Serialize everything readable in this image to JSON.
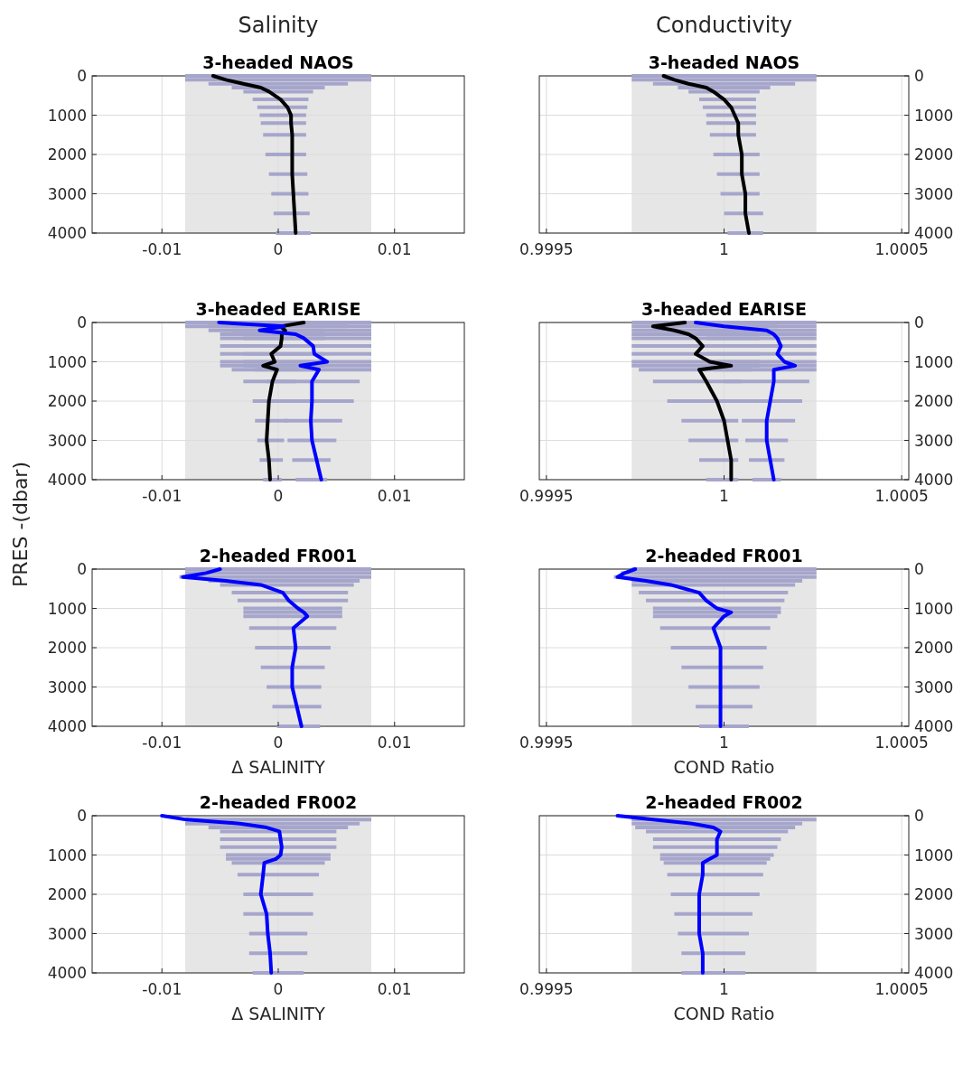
{
  "chart_data": [
    {
      "type": "line",
      "subtitle": "Salinity",
      "title": "3-headed NAOS",
      "xlim": [
        -0.016,
        0.016
      ],
      "xticks": [
        -0.01,
        0,
        0.01
      ],
      "ylim": [
        4000,
        0
      ],
      "yticks": [
        0,
        1000,
        2000,
        3000,
        4000
      ],
      "grid": true,
      "line_style": "solid",
      "bands": [
        {
          "axis": "x",
          "from": -0.008,
          "to": 0.008,
          "color": "#e6e6e6"
        }
      ],
      "series": [
        {
          "color": "#000000",
          "values": [
            0,
            100,
            200,
            300,
            400,
            600,
            800,
            1000,
            1200,
            1500,
            2000,
            2500,
            3000,
            3500,
            4000
          ],
          "x": [
            -0.0056,
            -0.0045,
            -0.003,
            -0.0015,
            -0.0008,
            0.0002,
            0.0008,
            0.0011,
            0.0011,
            0.0012,
            0.0012,
            0.0012,
            0.0013,
            0.0014,
            0.0015
          ],
          "xerrors": [
            [
              -0.008,
              0.008
            ],
            [
              -0.008,
              0.008
            ],
            [
              -0.006,
              0.006
            ],
            [
              -0.004,
              0.004
            ],
            [
              -0.003,
              0.003
            ],
            [
              -0.0022,
              0.0026
            ],
            [
              -0.0018,
              0.0025
            ],
            [
              -0.0016,
              0.0024
            ],
            [
              -0.0015,
              0.0024
            ],
            [
              -0.0013,
              0.0024
            ],
            [
              -0.0011,
              0.0024
            ],
            [
              -0.0008,
              0.0025
            ],
            [
              -0.0006,
              0.0026
            ],
            [
              -0.0004,
              0.0027
            ],
            [
              -0.0002,
              0.0028
            ]
          ]
        }
      ]
    },
    {
      "type": "line",
      "subtitle": "Conductivity",
      "title": "3-headed NAOS",
      "xlim": [
        0.99948,
        1.00052
      ],
      "xticks": [
        0.9995,
        1,
        1.0005
      ],
      "ylim": [
        4000,
        0
      ],
      "yticks": [
        0,
        1000,
        2000,
        3000,
        4000
      ],
      "grid": true,
      "line_style": "solid",
      "bands": [
        {
          "axis": "x",
          "from": 0.99974,
          "to": 1.00026,
          "color": "#e6e6e6"
        }
      ],
      "series": [
        {
          "color": "#000000",
          "values": [
            0,
            100,
            200,
            300,
            400,
            600,
            800,
            1000,
            1200,
            1500,
            2000,
            2500,
            3000,
            3500,
            4000
          ],
          "x": [
            0.99983,
            0.99986,
            0.9999,
            0.99995,
            0.99997,
            1.0,
            1.00002,
            1.00003,
            1.00004,
            1.00004,
            1.00005,
            1.00005,
            1.00006,
            1.00006,
            1.00007
          ],
          "xerrors": [
            [
              0.99974,
              1.00026
            ],
            [
              0.99974,
              1.00026
            ],
            [
              0.9998,
              1.0002
            ],
            [
              0.99987,
              1.00013
            ],
            [
              0.9999,
              1.0001
            ],
            [
              0.99993,
              1.00009
            ],
            [
              0.99994,
              1.00009
            ],
            [
              0.99995,
              1.00009
            ],
            [
              0.99995,
              1.00009
            ],
            [
              0.99996,
              1.00009
            ],
            [
              0.99997,
              1.0001
            ],
            [
              0.99998,
              1.0001
            ],
            [
              0.99999,
              1.0001
            ],
            [
              1.0,
              1.00011
            ],
            [
              1.00001,
              1.00011
            ]
          ]
        }
      ]
    },
    {
      "type": "line",
      "title": "3-headed EARISE",
      "ylabel": "PRES -(dbar)",
      "xlim": [
        -0.016,
        0.016
      ],
      "xticks": [
        -0.01,
        0,
        0.01
      ],
      "ylim": [
        4000,
        0
      ],
      "yticks": [
        0,
        1000,
        2000,
        3000,
        4000
      ],
      "grid": true,
      "line_style": "solid",
      "bands": [
        {
          "axis": "x",
          "from": -0.008,
          "to": 0.008,
          "color": "#e6e6e6"
        }
      ],
      "series": [
        {
          "color": "#000000",
          "values": [
            0,
            100,
            200,
            300,
            400,
            600,
            800,
            1000,
            1100,
            1200,
            1500,
            2000,
            2500,
            3000,
            3500,
            4000
          ],
          "x": [
            0.0022,
            0.0002,
            0.0006,
            0.0003,
            0.0003,
            0.0002,
            -0.0006,
            -0.0003,
            -0.0013,
            -0.0001,
            -0.0005,
            -0.0008,
            -0.0009,
            -0.001,
            -0.0008,
            -0.0007
          ],
          "xerrors": [
            [
              -0.008,
              0.008
            ],
            [
              -0.008,
              0.006
            ],
            [
              -0.006,
              0.004
            ],
            [
              -0.005,
              0.004
            ],
            [
              -0.005,
              0.004
            ],
            [
              -0.005,
              0.004
            ],
            [
              -0.005,
              0.004
            ],
            [
              -0.005,
              0.004
            ],
            [
              -0.005,
              0.004
            ],
            [
              -0.004,
              0.003
            ],
            [
              -0.003,
              0.0015
            ],
            [
              -0.0022,
              0.001
            ],
            [
              -0.002,
              0.0008
            ],
            [
              -0.0018,
              0.0005
            ],
            [
              -0.0016,
              0.0004
            ],
            [
              -0.0013,
              0.0003
            ]
          ]
        },
        {
          "color": "#0000ff",
          "values": [
            0,
            100,
            200,
            300,
            400,
            600,
            800,
            1000,
            1100,
            1200,
            1500,
            2000,
            2500,
            3000,
            3500,
            4000
          ],
          "x": [
            -0.0051,
            0.0005,
            -0.0016,
            0.0015,
            0.0022,
            0.003,
            0.0031,
            0.0042,
            0.0019,
            0.0035,
            0.0029,
            0.0029,
            0.0028,
            0.0029,
            0.0033,
            0.0037
          ],
          "xerrors": [
            [
              -0.008,
              0.008
            ],
            [
              -0.006,
              0.008
            ],
            [
              -0.004,
              0.008
            ],
            [
              -0.003,
              0.008
            ],
            [
              -0.003,
              0.008
            ],
            [
              -0.003,
              0.008
            ],
            [
              -0.003,
              0.008
            ],
            [
              -0.003,
              0.008
            ],
            [
              -0.003,
              0.008
            ],
            [
              -0.002,
              0.008
            ],
            [
              -0.001,
              0.007
            ],
            [
              0,
              0.0065
            ],
            [
              0.0005,
              0.0055
            ],
            [
              0.0008,
              0.005
            ],
            [
              0.0012,
              0.0045
            ],
            [
              0.0015,
              0.0042
            ]
          ]
        }
      ]
    },
    {
      "type": "line",
      "title": "3-headed EARISE",
      "xlim": [
        0.99948,
        1.00052
      ],
      "xticks": [
        0.9995,
        1,
        1.0005
      ],
      "ylim": [
        4000,
        0
      ],
      "yticks": [
        0,
        1000,
        2000,
        3000,
        4000
      ],
      "grid": true,
      "line_style": "solid",
      "bands": [
        {
          "axis": "x",
          "from": 0.99974,
          "to": 1.00026,
          "color": "#e6e6e6"
        }
      ],
      "series": [
        {
          "color": "#000000",
          "values": [
            0,
            100,
            200,
            300,
            400,
            600,
            800,
            1000,
            1100,
            1200,
            1500,
            2000,
            2500,
            3000,
            3500,
            4000
          ],
          "x": [
            0.99989,
            0.9998,
            0.99986,
            0.9999,
            0.99992,
            0.99994,
            0.99992,
            0.99996,
            1.00002,
            0.99993,
            0.99995,
            0.99998,
            1.0,
            1.00001,
            1.00002,
            1.00002
          ],
          "xerrors": [
            null,
            [
              0.99974,
              1.00015
            ],
            [
              0.99974,
              1.0001
            ],
            [
              0.99974,
              1.0001
            ],
            [
              0.99974,
              1.0001
            ],
            [
              0.99974,
              1.0001
            ],
            [
              0.99974,
              1.0001
            ],
            [
              0.99974,
              1.0001
            ],
            [
              0.99974,
              1.0001
            ],
            [
              0.99976,
              1.00008
            ],
            [
              0.9998,
              1.00005
            ],
            [
              0.99984,
              1.00005
            ],
            [
              0.99988,
              1.00004
            ],
            [
              0.9999,
              1.00004
            ],
            [
              0.99993,
              1.00004
            ],
            [
              0.99995,
              1.00004
            ]
          ]
        },
        {
          "color": "#0000ff",
          "values": [
            0,
            100,
            200,
            300,
            400,
            600,
            800,
            1000,
            1100,
            1200,
            1500,
            2000,
            2500,
            3000,
            3500,
            4000
          ],
          "x": [
            0.99992,
            1.0,
            1.00012,
            1.00014,
            1.00015,
            1.00016,
            1.00015,
            1.00017,
            1.0002,
            1.00014,
            1.00014,
            1.00013,
            1.00012,
            1.00012,
            1.00013,
            1.00014
          ],
          "xerrors": [
            [
              0.99974,
              1.00026
            ],
            [
              0.99985,
              1.00026
            ],
            [
              0.99993,
              1.00026
            ],
            [
              0.99995,
              1.00026
            ],
            [
              0.99995,
              1.00026
            ],
            [
              0.99995,
              1.00026
            ],
            [
              0.99995,
              1.00026
            ],
            [
              0.99995,
              1.00026
            ],
            [
              0.99995,
              1.00026
            ],
            [
              0.99997,
              1.00026
            ],
            [
              1.0,
              1.00024
            ],
            [
              1.00003,
              1.00022
            ],
            [
              1.00005,
              1.0002
            ],
            [
              1.00006,
              1.00018
            ],
            [
              1.00007,
              1.00017
            ],
            [
              1.00008,
              1.00016
            ]
          ]
        }
      ]
    },
    {
      "type": "line",
      "title": "2-headed FR001",
      "xlabel": "Δ SALINITY",
      "xlim": [
        -0.016,
        0.016
      ],
      "xticks": [
        -0.01,
        0,
        0.01
      ],
      "ylim": [
        4000,
        0
      ],
      "yticks": [
        0,
        1000,
        2000,
        3000,
        4000
      ],
      "grid": true,
      "line_style": "solid",
      "bands": [
        {
          "axis": "x",
          "from": -0.008,
          "to": 0.008,
          "color": "#e6e6e6"
        }
      ],
      "series": [
        {
          "color": "#0000ff",
          "values": [
            0,
            100,
            200,
            300,
            400,
            600,
            800,
            1000,
            1100,
            1200,
            1500,
            2000,
            2500,
            3000,
            3500,
            4000
          ],
          "x": [
            -0.005,
            -0.0062,
            -0.0082,
            -0.0045,
            -0.0015,
            0.0004,
            0.0009,
            0.0017,
            0.0022,
            0.0025,
            0.0013,
            0.0015,
            0.0012,
            0.0012,
            0.0016,
            0.002
          ],
          "xerrors": [
            [
              -0.008,
              0.008
            ],
            [
              -0.008,
              0.008
            ],
            [
              -0.0085,
              0.008
            ],
            [
              -0.006,
              0.007
            ],
            [
              -0.005,
              0.0065
            ],
            [
              -0.004,
              0.006
            ],
            [
              -0.0035,
              0.006
            ],
            [
              -0.003,
              0.0055
            ],
            [
              -0.003,
              0.0055
            ],
            [
              -0.003,
              0.0055
            ],
            [
              -0.0025,
              0.005
            ],
            [
              -0.002,
              0.0045
            ],
            [
              -0.0015,
              0.004
            ],
            [
              -0.001,
              0.0037
            ],
            [
              -0.0005,
              0.0037
            ],
            [
              -0.0001,
              0.0036
            ]
          ]
        }
      ]
    },
    {
      "type": "line",
      "title": "2-headed FR001",
      "xlabel": "COND Ratio",
      "xlim": [
        0.99948,
        1.00052
      ],
      "xticks": [
        0.9995,
        1,
        1.0005
      ],
      "ylim": [
        4000,
        0
      ],
      "yticks": [
        0,
        1000,
        2000,
        3000,
        4000
      ],
      "grid": true,
      "line_style": "solid",
      "bands": [
        {
          "axis": "x",
          "from": 0.99974,
          "to": 1.00026,
          "color": "#e6e6e6"
        }
      ],
      "series": [
        {
          "color": "#0000ff",
          "values": [
            0,
            100,
            200,
            300,
            400,
            600,
            800,
            1000,
            1100,
            1200,
            1500,
            2000,
            2500,
            3000,
            3500,
            4000
          ],
          "x": [
            0.99975,
            0.99972,
            0.9997,
            0.99978,
            0.99985,
            0.99993,
            0.99995,
            0.99998,
            1.00002,
            1.0,
            0.99997,
            0.99999,
            0.99999,
            0.99999,
            0.99999,
            0.99999
          ],
          "xerrors": [
            [
              0.99974,
              1.00026
            ],
            [
              0.99971,
              1.00026
            ],
            [
              0.99969,
              1.00026
            ],
            [
              0.99974,
              1.00022
            ],
            [
              0.99974,
              1.0002
            ],
            [
              0.99976,
              1.00018
            ],
            [
              0.99978,
              1.00017
            ],
            [
              0.9998,
              1.00016
            ],
            [
              0.9998,
              1.00016
            ],
            [
              0.9998,
              1.00015
            ],
            [
              0.99982,
              1.00013
            ],
            [
              0.99985,
              1.00012
            ],
            [
              0.99988,
              1.00011
            ],
            [
              0.9999,
              1.0001
            ],
            [
              0.99992,
              1.00008
            ],
            [
              0.99993,
              1.00007
            ]
          ]
        }
      ]
    },
    {
      "type": "line",
      "title": "2-headed FR002",
      "xlabel": "Δ SALINITY",
      "xlim": [
        -0.016,
        0.016
      ],
      "xticks": [
        -0.01,
        0,
        0.01
      ],
      "ylim": [
        4000,
        0
      ],
      "yticks": [
        0,
        1000,
        2000,
        3000,
        4000
      ],
      "grid": true,
      "line_style": "solid",
      "bands": [
        {
          "axis": "x",
          "from": -0.008,
          "to": 0.008,
          "color": "#e6e6e6"
        }
      ],
      "series": [
        {
          "color": "#0000ff",
          "values": [
            0,
            100,
            200,
            300,
            400,
            600,
            800,
            1000,
            1100,
            1200,
            1500,
            2000,
            2500,
            3000,
            3500,
            4000
          ],
          "x": [
            -0.01,
            -0.0079,
            -0.0033,
            -0.001,
            0.0001,
            0.0002,
            0.0003,
            0.0002,
            -0.0002,
            -0.0012,
            -0.0013,
            -0.0015,
            -0.001,
            -0.0009,
            -0.0007,
            -0.0006
          ],
          "xerrors": [
            null,
            [
              -0.008,
              0.008
            ],
            [
              -0.008,
              0.007
            ],
            [
              -0.006,
              0.006
            ],
            [
              -0.005,
              0.005
            ],
            [
              -0.005,
              0.005
            ],
            [
              -0.005,
              0.005
            ],
            [
              -0.0045,
              0.0045
            ],
            [
              -0.0045,
              0.0045
            ],
            [
              -0.004,
              0.004
            ],
            [
              -0.0035,
              0.0035
            ],
            [
              -0.003,
              0.003
            ],
            [
              -0.003,
              0.003
            ],
            [
              -0.0025,
              0.0025
            ],
            [
              -0.0025,
              0.0025
            ],
            [
              -0.0022,
              0.0022
            ]
          ]
        }
      ]
    },
    {
      "type": "line",
      "title": "2-headed FR002",
      "xlabel": "COND Ratio",
      "xlim": [
        0.99948,
        1.00052
      ],
      "xticks": [
        0.9995,
        1,
        1.0005
      ],
      "ylim": [
        4000,
        0
      ],
      "yticks": [
        0,
        1000,
        2000,
        3000,
        4000
      ],
      "grid": true,
      "line_style": "solid",
      "bands": [
        {
          "axis": "x",
          "from": 0.99974,
          "to": 1.00026,
          "color": "#e6e6e6"
        }
      ],
      "series": [
        {
          "color": "#0000ff",
          "values": [
            0,
            100,
            200,
            300,
            400,
            600,
            800,
            1000,
            1100,
            1200,
            1500,
            2000,
            2500,
            3000,
            3500,
            4000
          ],
          "x": [
            0.9997,
            0.9998,
            0.99991,
            0.99997,
            0.99999,
            0.99998,
            0.99998,
            0.99998,
            0.99996,
            0.99994,
            0.99994,
            0.99993,
            0.99993,
            0.99993,
            0.99994,
            0.99994
          ],
          "xerrors": [
            null,
            [
              0.99974,
              1.00026
            ],
            [
              0.99974,
              1.00022
            ],
            [
              0.99975,
              1.0002
            ],
            [
              0.99978,
              1.00018
            ],
            [
              0.9998,
              1.00016
            ],
            [
              0.9998,
              1.00015
            ],
            [
              0.99982,
              1.00014
            ],
            [
              0.99982,
              1.00013
            ],
            [
              0.99983,
              1.00012
            ],
            [
              0.99984,
              1.00011
            ],
            [
              0.99985,
              1.0001
            ],
            [
              0.99986,
              1.00008
            ],
            [
              0.99987,
              1.00007
            ],
            [
              0.99988,
              1.00006
            ],
            [
              0.99988,
              1.00006
            ]
          ]
        }
      ]
    }
  ]
}
